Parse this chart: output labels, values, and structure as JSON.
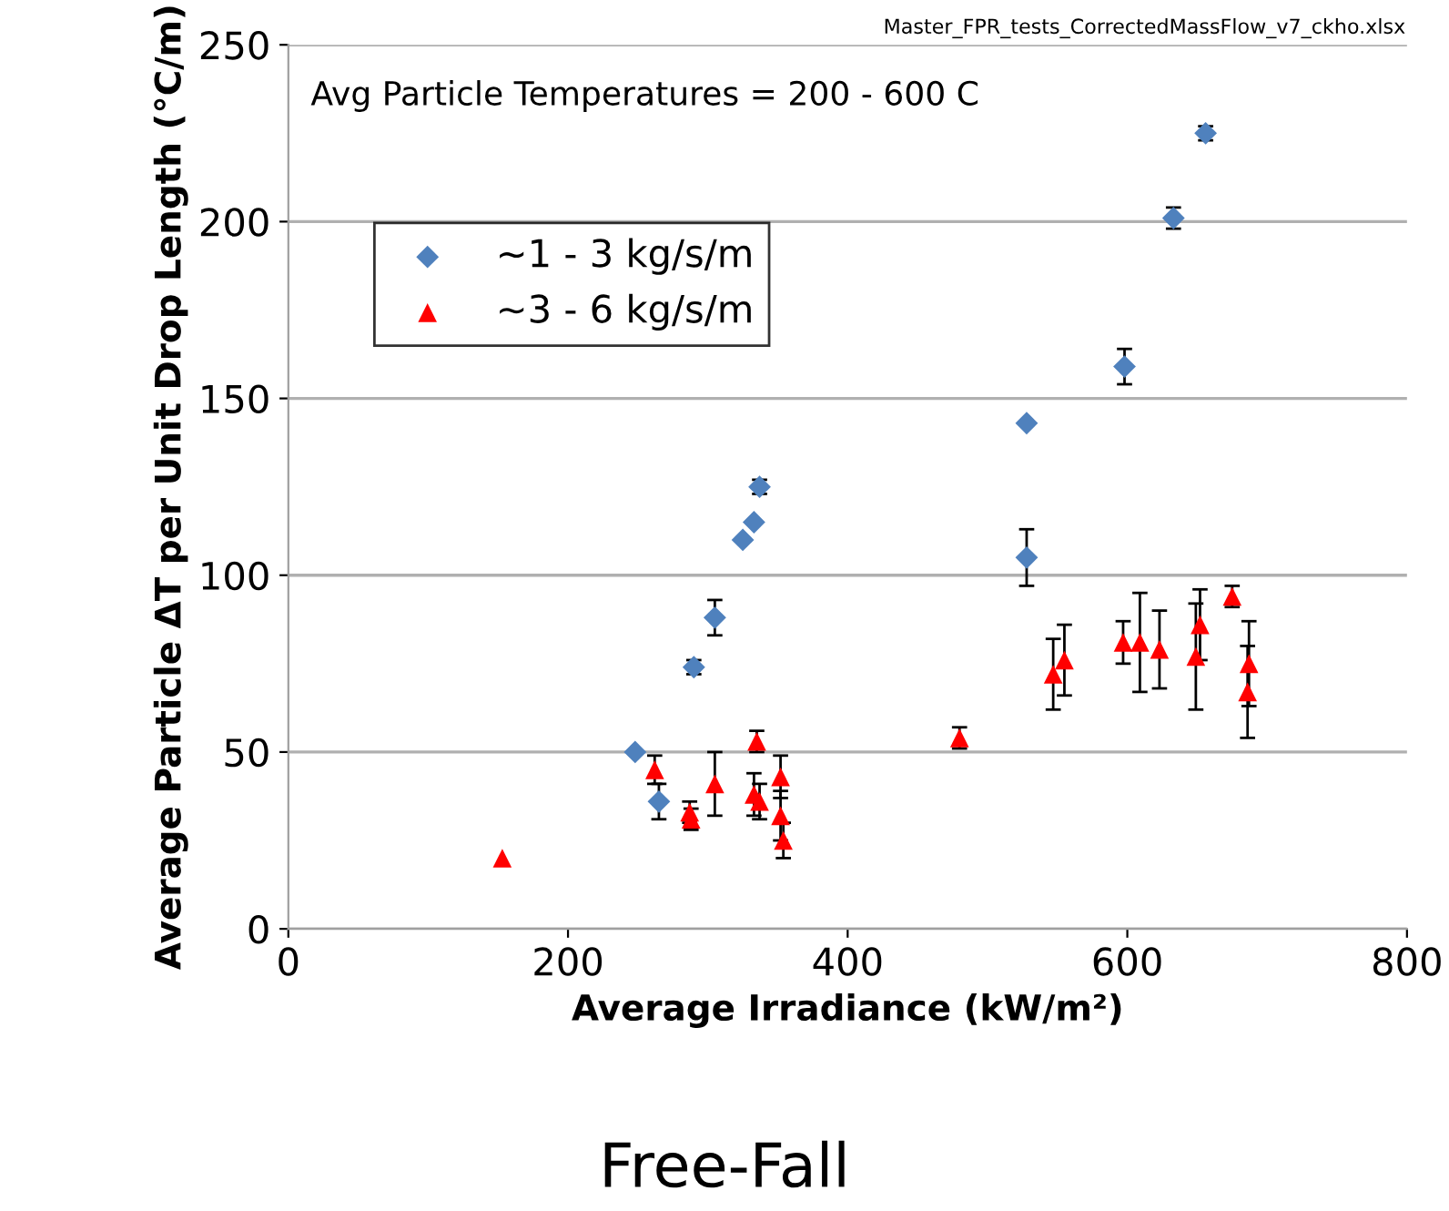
{
  "chart_data": {
    "type": "scatter",
    "title": "Free-Fall",
    "xlabel": "Average Irradiance (kW/m²)",
    "ylabel": "Average Particle ΔT per Unit Drop Length (°C/m)",
    "annotations": [
      "Avg Particle Temperatures = 200 - 600 C",
      "Master_FPR_tests_CorrectedMassFlow_v7_ckho.xlsx"
    ],
    "xlim": [
      0,
      800
    ],
    "xticks": [
      0,
      200,
      400,
      600,
      800
    ],
    "ylim": [
      0,
      250
    ],
    "yticks": [
      0,
      50,
      100,
      150,
      200,
      250
    ],
    "grid": "y",
    "legend": "top left",
    "series": [
      {
        "name": "~1 - 3 kg/s/m",
        "color": "#4f81bd",
        "marker": "diamond",
        "x": [
          248,
          265,
          290,
          305,
          325,
          333,
          337,
          528,
          528,
          598,
          633,
          656
        ],
        "values": [
          50,
          36,
          74,
          88,
          110,
          115,
          125,
          105,
          143,
          159,
          201,
          225
        ],
        "errors": [
          null,
          5,
          2,
          5,
          null,
          null,
          2,
          8,
          null,
          5,
          3,
          2
        ]
      },
      {
        "name": "~3 - 6 kg/s/m",
        "color": "#ff0000",
        "marker": "triangle",
        "x": [
          153,
          262,
          287,
          288,
          305,
          333,
          335,
          337,
          352,
          352,
          354,
          480,
          547,
          555,
          597,
          609,
          623,
          649,
          652,
          675,
          686,
          687
        ],
        "values": [
          20,
          45,
          33,
          31,
          41,
          38,
          53,
          36,
          43,
          32,
          25,
          54,
          72,
          76,
          81,
          81,
          79,
          77,
          86,
          94,
          67,
          75
        ],
        "errors": [
          null,
          4,
          3,
          3,
          9,
          6,
          3,
          5,
          6,
          7,
          5,
          3,
          10,
          10,
          6,
          14,
          11,
          15,
          10,
          3,
          13,
          12
        ]
      }
    ]
  }
}
